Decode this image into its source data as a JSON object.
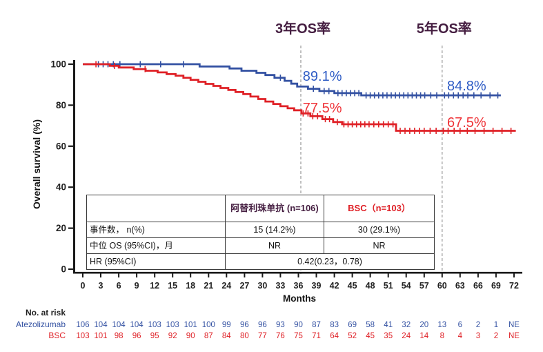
{
  "colors": {
    "background": "#ffffff",
    "axis": "#1a1a1a",
    "dashed_line": "#a6a6a6",
    "os_label_purple": "#451e41",
    "atezolizumab_blue": "#3351a2",
    "atezolizumab_label_blue": "#2e5cc5",
    "bsc_red": "#df2026",
    "bsc_label_red": "#ef3237"
  },
  "chart_data": {
    "type": "line",
    "subtype": "kaplan-meier-step",
    "title": "",
    "xlabel": "Months",
    "ylabel": "Overall survival (%)",
    "xlim": [
      0,
      72
    ],
    "ylim": [
      0,
      100
    ],
    "grid": false,
    "x_ticks": [
      0,
      3,
      6,
      9,
      12,
      15,
      18,
      21,
      24,
      27,
      30,
      33,
      36,
      39,
      42,
      45,
      48,
      51,
      54,
      57,
      60,
      63,
      66,
      69,
      72
    ],
    "y_ticks": [
      0,
      20,
      40,
      60,
      80,
      100
    ],
    "dashed_vlines": [
      {
        "month": 36.4,
        "label": "3年OS率"
      },
      {
        "month": 60.0,
        "label": "5年OS率"
      }
    ],
    "series": [
      {
        "name": "Atezolizumab",
        "color": "#3351a2",
        "label_color": "#2e5cc5",
        "points": [
          [
            0,
            100
          ],
          [
            19.5,
            100
          ],
          [
            19.5,
            98.9
          ],
          [
            24.5,
            98.9
          ],
          [
            24.5,
            97.9
          ],
          [
            26.5,
            97.9
          ],
          [
            26.5,
            96.8
          ],
          [
            29,
            96.8
          ],
          [
            29,
            95.8
          ],
          [
            30.5,
            95.8
          ],
          [
            30.5,
            94.7
          ],
          [
            32,
            94.7
          ],
          [
            32,
            93.4
          ],
          [
            33.7,
            93.4
          ],
          [
            33.7,
            91.9
          ],
          [
            34.8,
            91.9
          ],
          [
            34.8,
            90.5
          ],
          [
            35.8,
            90.5
          ],
          [
            35.8,
            89.1
          ],
          [
            37.6,
            89.1
          ],
          [
            37.6,
            88
          ],
          [
            39.5,
            88
          ],
          [
            39.5,
            86.9
          ],
          [
            42,
            86.9
          ],
          [
            42,
            85.9
          ],
          [
            46.5,
            85.9
          ],
          [
            46.5,
            84.8
          ],
          [
            69.8,
            84.8
          ]
        ],
        "censor_months": [
          2.6,
          3.4,
          4.2,
          5.1,
          6.2,
          9.6,
          13,
          16.8,
          33,
          38.5,
          40.3,
          41.1,
          42.6,
          43.3,
          44,
          44.7,
          45.4,
          46.1,
          47.3,
          48,
          48.7,
          49.4,
          50.1,
          50.8,
          51.5,
          52.2,
          52.9,
          53.6,
          54.3,
          55,
          55.7,
          56.4,
          57.1,
          58.1,
          59.1,
          60.4,
          61.1,
          61.9,
          62.7,
          63.5,
          64.3,
          65.3,
          66.5,
          68,
          69.3
        ],
        "annotations": [
          {
            "text": "89.1%",
            "month": 36.5,
            "pct": 91.9
          },
          {
            "text": "84.8%",
            "month": 60.6,
            "pct": 87.2
          }
        ]
      },
      {
        "name": "BSC",
        "color": "#df2026",
        "label_color": "#ef3237",
        "points": [
          [
            0,
            100
          ],
          [
            4.5,
            100
          ],
          [
            4.5,
            99.2
          ],
          [
            6,
            99.2
          ],
          [
            6,
            98.4
          ],
          [
            8.5,
            98.4
          ],
          [
            8.5,
            97.6
          ],
          [
            10.5,
            97.6
          ],
          [
            10.5,
            96.8
          ],
          [
            12.5,
            96.8
          ],
          [
            12.5,
            96
          ],
          [
            14,
            96
          ],
          [
            14,
            95.2
          ],
          [
            15.5,
            95.2
          ],
          [
            15.5,
            94.4
          ],
          [
            16.8,
            94.4
          ],
          [
            16.8,
            93.4
          ],
          [
            18,
            93.4
          ],
          [
            18,
            92.4
          ],
          [
            19.3,
            92.4
          ],
          [
            19.3,
            91.4
          ],
          [
            20.5,
            91.4
          ],
          [
            20.5,
            90.4
          ],
          [
            21.8,
            90.4
          ],
          [
            21.8,
            89.4
          ],
          [
            23,
            89.4
          ],
          [
            23,
            88.4
          ],
          [
            24.3,
            88.4
          ],
          [
            24.3,
            87.4
          ],
          [
            25.5,
            87.4
          ],
          [
            25.5,
            86.4
          ],
          [
            26.8,
            86.4
          ],
          [
            26.8,
            85.4
          ],
          [
            28,
            85.4
          ],
          [
            28,
            84.2
          ],
          [
            29.3,
            84.2
          ],
          [
            29.3,
            83
          ],
          [
            30.5,
            83
          ],
          [
            30.5,
            81.8
          ],
          [
            31.8,
            81.8
          ],
          [
            31.8,
            80.6
          ],
          [
            33,
            80.6
          ],
          [
            33,
            79.5
          ],
          [
            34.2,
            79.5
          ],
          [
            34.2,
            78.5
          ],
          [
            35.3,
            78.5
          ],
          [
            35.3,
            77.5
          ],
          [
            36.5,
            77.5
          ],
          [
            36.5,
            76
          ],
          [
            38,
            76
          ],
          [
            38,
            74.6
          ],
          [
            40,
            74.6
          ],
          [
            40,
            73.2
          ],
          [
            41.8,
            73.2
          ],
          [
            41.8,
            71.8
          ],
          [
            43.3,
            71.8
          ],
          [
            43.3,
            70.7
          ],
          [
            52.3,
            70.7
          ],
          [
            52.3,
            67.5
          ],
          [
            72.3,
            67.5
          ]
        ],
        "censor_months": [
          2.2,
          5.3,
          10.4,
          36.8,
          37.6,
          38.4,
          39.2,
          40.5,
          41.2,
          42.5,
          43.6,
          44.3,
          45,
          45.7,
          46.4,
          47.1,
          47.8,
          48.6,
          49.4,
          50.2,
          51,
          51.8,
          53,
          53.8,
          54.6,
          55.4,
          56.2,
          57,
          58,
          59,
          60.2,
          61,
          62,
          63,
          64.2,
          65.5,
          67,
          68.5,
          70,
          71.5
        ],
        "annotations": [
          {
            "text": "77.5%",
            "month": 36.5,
            "pct": 76.4
          },
          {
            "text": "67.5%",
            "month": 60.6,
            "pct": 69.4
          }
        ]
      }
    ]
  },
  "stats_table": {
    "header": [
      "",
      "阿替利珠单抗 (n=106)",
      "BSC（n=103）"
    ],
    "rows": [
      [
        "事件数， n(%)",
        "15 (14.2%)",
        "30 (29.1%)"
      ],
      [
        "中位 OS (95%CI)，月",
        "NR",
        "NR"
      ],
      [
        "HR (95%CI)",
        "0.42(0.23，0.78)"
      ]
    ]
  },
  "risk_table": {
    "title": "No. at risk",
    "rows": [
      {
        "label": "Atezolizumab",
        "color": "#3351a2",
        "values": [
          "106",
          "104",
          "104",
          "104",
          "103",
          "103",
          "101",
          "100",
          "99",
          "96",
          "96",
          "93",
          "90",
          "87",
          "83",
          "69",
          "58",
          "41",
          "32",
          "20",
          "13",
          "6",
          "2",
          "1",
          "NE"
        ]
      },
      {
        "label": "BSC",
        "color": "#df2026",
        "values": [
          "103",
          "101",
          "98",
          "96",
          "95",
          "92",
          "90",
          "87",
          "84",
          "80",
          "77",
          "76",
          "75",
          "71",
          "64",
          "52",
          "45",
          "35",
          "24",
          "14",
          "8",
          "4",
          "3",
          "2",
          "NE"
        ]
      }
    ]
  }
}
